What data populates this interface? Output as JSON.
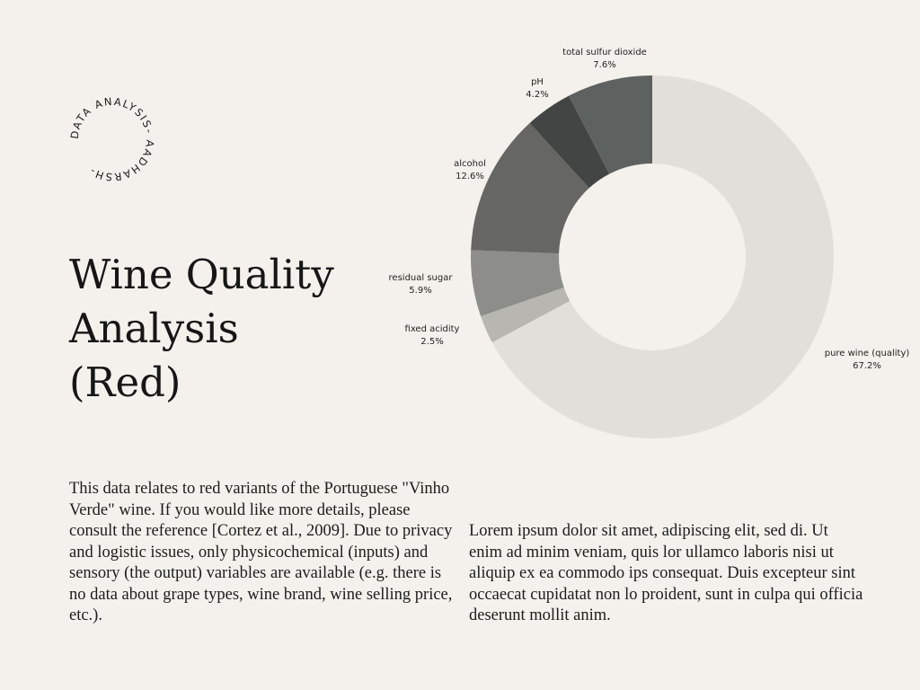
{
  "badge": {
    "text": "DATA ANALYSIS- AADHARSH-"
  },
  "title": {
    "line1": "Wine Quality",
    "line2": "Analysis",
    "line3": "(Red)"
  },
  "description": "This data relates to red variants of the Portuguese \"Vinho Verde\" wine. If you would like more details, please consult the reference [Cortez et al., 2009]. Due to privacy and logistic issues, only physicochemical (inputs) and sensory (the output) variables are available (e.g. there is no data about grape types, wine brand, wine selling price, etc.).",
  "lorem": "Lorem ipsum dolor sit amet, adipiscing elit, sed di. Ut enim ad minim veniam, quis lor ullamco laboris nisi ut aliquip ex ea commodo ips consequat. Duis excepteur sint occaecat cupidatat non lo proident, sunt in culpa qui officia deserunt mollit anim.",
  "chart_data": {
    "type": "pie",
    "style": "donut",
    "title": "",
    "legend": "none",
    "slices": [
      {
        "label": "pure wine (quality)",
        "value": 67.2,
        "display": "67.2%",
        "color": "#e2dfda"
      },
      {
        "label": "fixed acidity",
        "value": 2.5,
        "display": "2.5%",
        "color": "#b7b6b1"
      },
      {
        "label": "residual sugar",
        "value": 5.9,
        "display": "5.9%",
        "color": "#8d8e89"
      },
      {
        "label": "alcohol",
        "value": 12.6,
        "display": "12.6%",
        "color": "#666763"
      },
      {
        "label": "pH",
        "value": 4.2,
        "display": "4.2%",
        "color": "#424543"
      },
      {
        "label": "total sulfur dioxide",
        "value": 7.6,
        "display": "7.6%",
        "color": "#5d6160"
      }
    ]
  }
}
